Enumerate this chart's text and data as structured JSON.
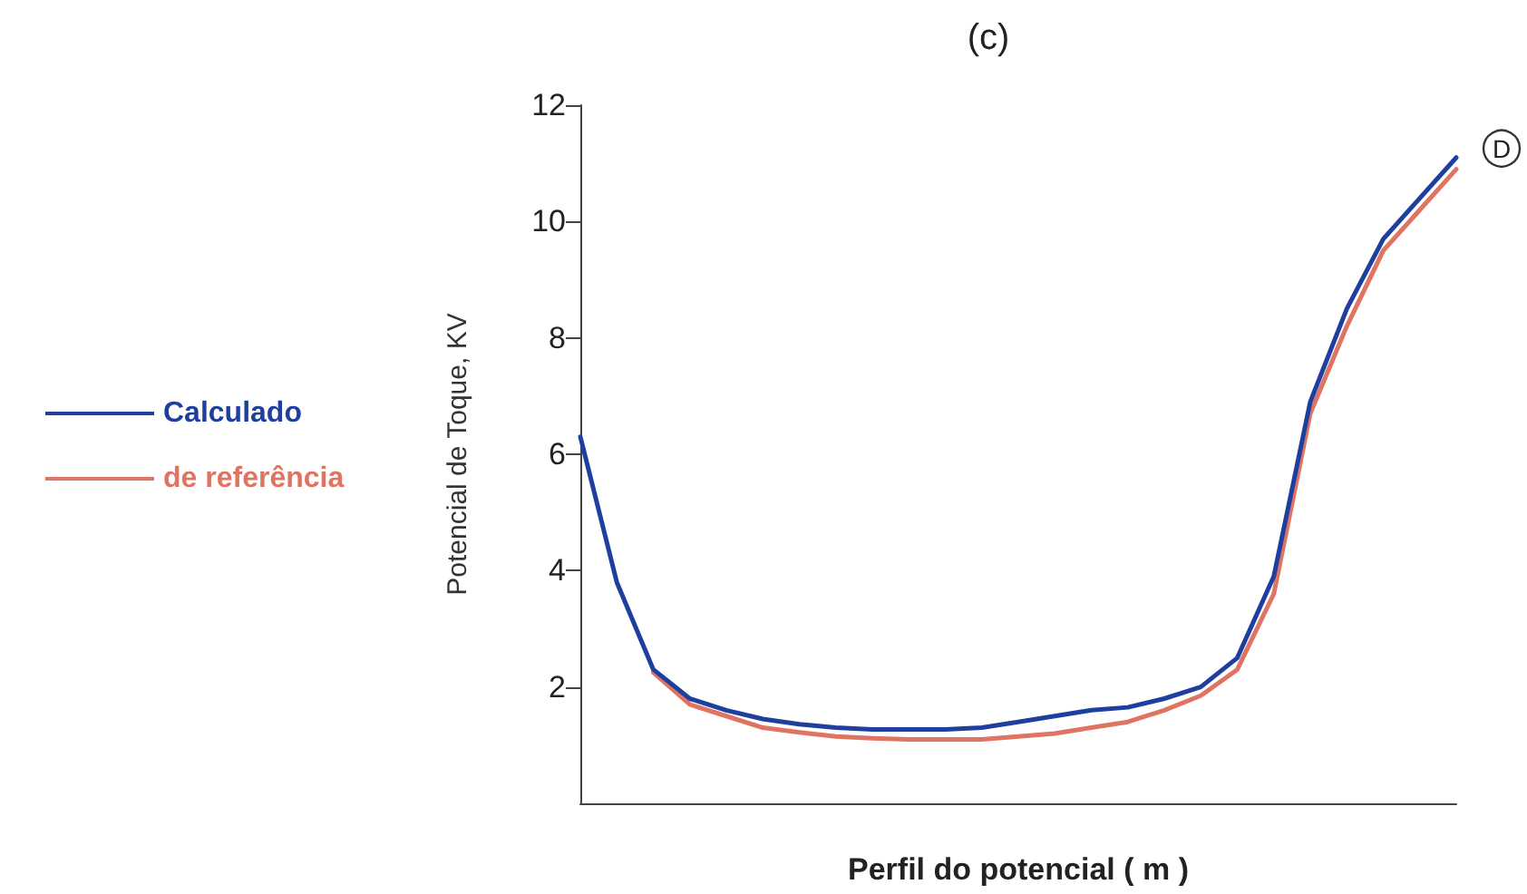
{
  "chart_data": {
    "type": "line",
    "title": "(c)",
    "xlabel": "Perfil do potencial ( m )",
    "ylabel": "Potencial de Toque, KV",
    "categories": [
      null,
      null,
      null,
      null,
      null,
      null,
      null,
      null,
      null,
      null,
      null,
      null,
      null,
      null,
      null,
      null,
      null,
      null,
      null,
      null,
      null,
      null,
      null,
      null,
      null
    ],
    "series": [
      {
        "name": "Calculado",
        "color": "#1f3f9f",
        "values": [
          6.3,
          3.8,
          2.3,
          1.8,
          1.6,
          1.45,
          1.36,
          1.3,
          1.27,
          1.27,
          1.27,
          1.3,
          1.4,
          1.5,
          1.6,
          1.65,
          1.8,
          2.0,
          2.5,
          3.9,
          6.9,
          8.5,
          9.7,
          10.4,
          11.1
        ]
      },
      {
        "name": "de referência",
        "color": "#e07462",
        "values": [
          null,
          null,
          2.25,
          1.7,
          1.5,
          1.3,
          1.22,
          1.15,
          1.12,
          1.1,
          1.1,
          1.1,
          1.15,
          1.2,
          1.3,
          1.4,
          1.6,
          1.85,
          2.3,
          3.6,
          6.7,
          8.2,
          9.5,
          10.2,
          10.9
        ]
      }
    ],
    "ylim": [
      0,
      12
    ],
    "yticks": [
      2,
      4,
      6,
      8,
      10,
      12
    ],
    "grid": false,
    "legend": "left",
    "marker": "none",
    "line_style": "solid",
    "annotations": [
      "D"
    ]
  }
}
